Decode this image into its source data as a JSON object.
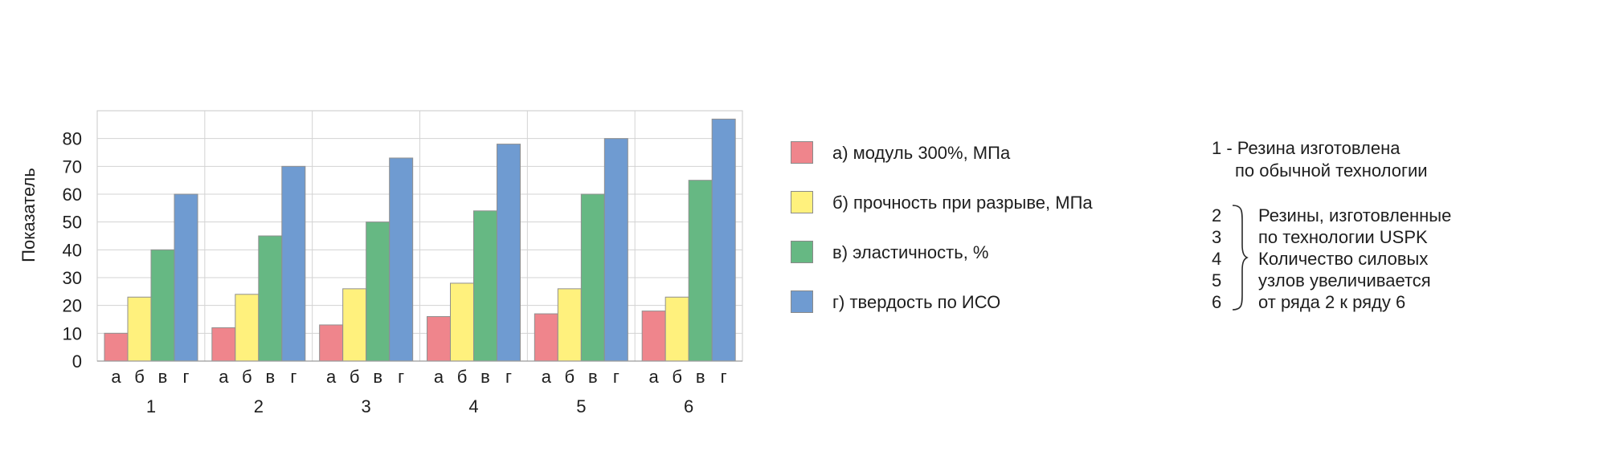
{
  "chart_data": {
    "type": "bar",
    "ylabel": "Показатель",
    "xlabel": "",
    "ylim": [
      0,
      90
    ],
    "yticks": [
      0,
      10,
      20,
      30,
      40,
      50,
      60,
      70,
      80
    ],
    "grid": true,
    "groups": [
      "1",
      "2",
      "3",
      "4",
      "5",
      "6"
    ],
    "bar_letters": [
      "а",
      "б",
      "в",
      "г"
    ],
    "series": [
      {
        "name": "а) модуль 300%, МПа",
        "color": "#ef858c",
        "values": [
          10,
          12,
          13,
          16,
          17,
          18
        ]
      },
      {
        "name": "б) прочность при разрыве, МПа",
        "color": "#fff17d",
        "values": [
          23,
          24,
          26,
          28,
          26,
          23
        ]
      },
      {
        "name": "в) эластичность, %",
        "color": "#66b883",
        "values": [
          40,
          45,
          50,
          54,
          60,
          65
        ]
      },
      {
        "name": "г) твердость по ИСО",
        "color": "#6f9bd1",
        "values": [
          60,
          70,
          73,
          78,
          80,
          87
        ]
      }
    ],
    "legend_position": "right"
  },
  "notes": {
    "line1": "1 - Резина изготовлена",
    "line2": "по обычной технологии",
    "numbers": [
      "2",
      "3",
      "4",
      "5",
      "6"
    ],
    "desc": [
      "Резины, изготовленные",
      "по технологии USPK",
      "Количество силовых",
      "узлов увеличивается",
      "от ряда 2 к ряду 6"
    ]
  }
}
